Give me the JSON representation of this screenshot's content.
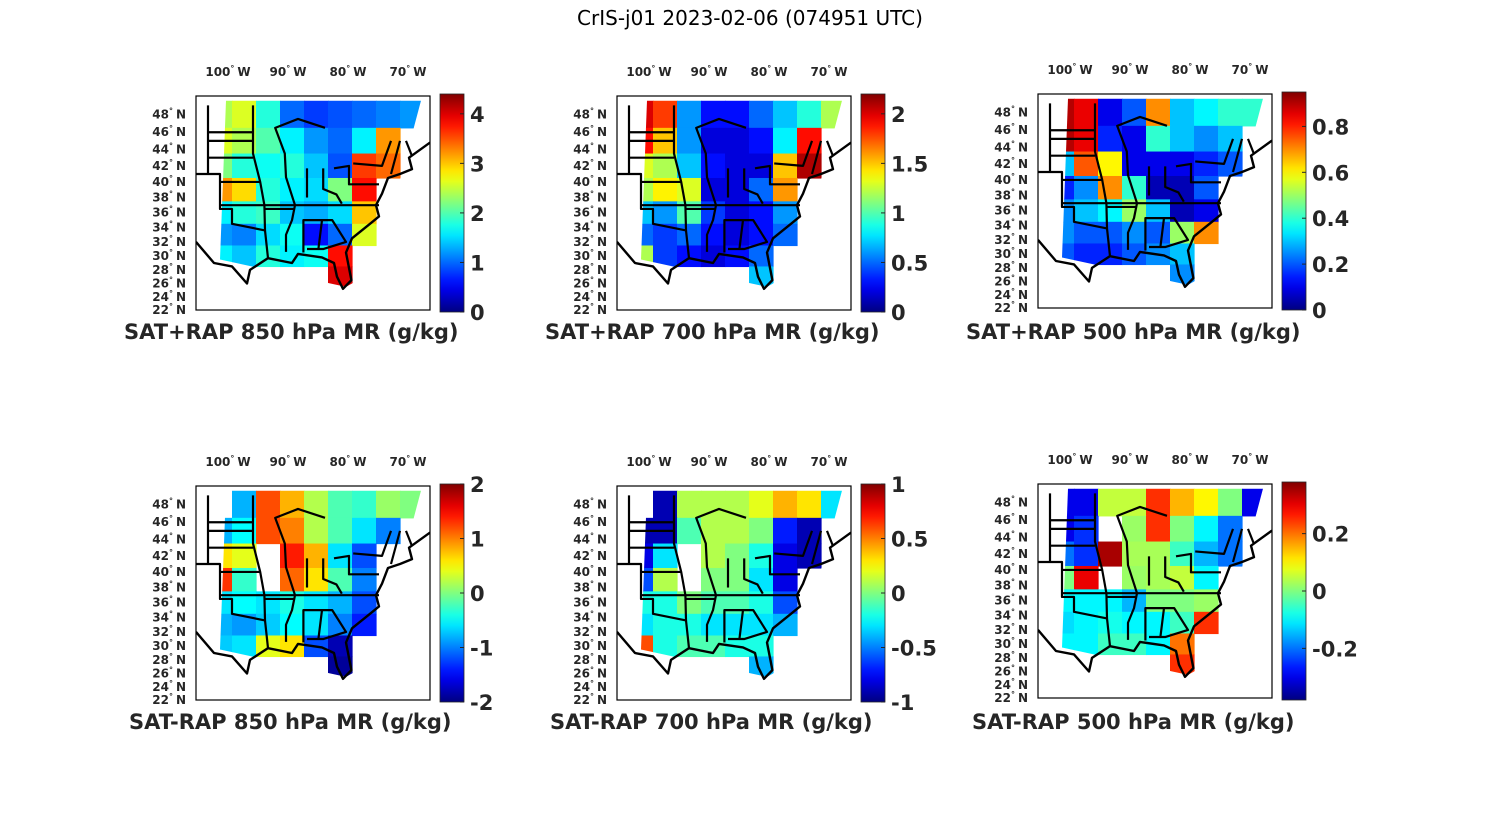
{
  "figure_title": "CrIS-j01 2023-02-06 (074951 UTC)",
  "colormap": "jet",
  "colors": {
    "background": "#ffffff",
    "text": "#262626",
    "border": "#000000",
    "missing": "#ffffff"
  },
  "chart_data": [
    {
      "type": "heatmap",
      "title": "SAT+RAP 850 hPa MR (g/kg)",
      "x_ticks": [
        "100° W",
        "90° W",
        "80° W",
        "70° W"
      ],
      "y_ticks": [
        "48° N",
        "46° N",
        "44° N",
        "42° N",
        "40° N",
        "38° N",
        "36° N",
        "34° N",
        "32° N",
        "30° N",
        "28° N",
        "26° N",
        "24° N",
        "22° N"
      ],
      "xlim": [
        -106,
        -67
      ],
      "ylim": [
        22,
        50
      ],
      "clim": [
        0,
        4.4
      ],
      "colorbar_ticks": [
        "0",
        "1",
        "2",
        "3",
        "4"
      ],
      "colorbar_values": [
        0,
        1,
        2,
        3,
        4
      ],
      "grid_lat": [
        48,
        45,
        42,
        39,
        36,
        33,
        30,
        27
      ],
      "grid_lon": [
        -102,
        -98,
        -94,
        -90,
        -86,
        -82,
        -78,
        -74,
        -70
      ],
      "values": [
        [
          2.4,
          2.6,
          1.8,
          1.0,
          0.8,
          0.9,
          1.0,
          1.1,
          1.2
        ],
        [
          2.6,
          2.4,
          2.0,
          1.6,
          1.2,
          1.0,
          1.6,
          3.2,
          null
        ],
        [
          2.2,
          1.8,
          1.7,
          1.8,
          1.4,
          0.9,
          3.6,
          3.4,
          null
        ],
        [
          3.2,
          2.9,
          1.8,
          1.6,
          1.5,
          2.2,
          3.8,
          null,
          null
        ],
        [
          1.6,
          1.8,
          1.9,
          1.4,
          1.3,
          1.5,
          3.0,
          null,
          null
        ],
        [
          1.2,
          1.1,
          1.5,
          1.7,
          0.6,
          1.0,
          2.6,
          null,
          null
        ],
        [
          1.6,
          1.4,
          1.8,
          1.6,
          1.7,
          3.8,
          null,
          null,
          null
        ],
        [
          null,
          null,
          null,
          null,
          null,
          4.0,
          null,
          null,
          null
        ]
      ]
    },
    {
      "type": "heatmap",
      "title": "SAT+RAP 700 hPa MR (g/kg)",
      "x_ticks": [
        "100° W",
        "90° W",
        "80° W",
        "70° W"
      ],
      "y_ticks": [
        "48° N",
        "46° N",
        "44° N",
        "42° N",
        "40° N",
        "38° N",
        "36° N",
        "34° N",
        "32° N",
        "30° N",
        "28° N",
        "26° N",
        "24° N",
        "22° N"
      ],
      "xlim": [
        -106,
        -67
      ],
      "ylim": [
        22,
        50
      ],
      "clim": [
        0,
        2.2
      ],
      "colorbar_ticks": [
        "0",
        "0.5",
        "1",
        "1.5",
        "2"
      ],
      "colorbar_values": [
        0,
        0.5,
        1,
        1.5,
        2
      ],
      "grid_lat": [
        48,
        45,
        42,
        39,
        36,
        33,
        30,
        27
      ],
      "grid_lon": [
        -102,
        -98,
        -94,
        -90,
        -86,
        -82,
        -78,
        -74,
        -70
      ],
      "values": [
        [
          2.0,
          1.8,
          0.6,
          0.3,
          0.3,
          0.5,
          0.7,
          0.9,
          1.2
        ],
        [
          1.9,
          1.5,
          0.6,
          0.2,
          0.2,
          0.3,
          0.8,
          1.9,
          null
        ],
        [
          1.3,
          1.2,
          0.7,
          0.3,
          0.2,
          0.2,
          1.5,
          2.1,
          null
        ],
        [
          1.2,
          1.4,
          1.3,
          0.2,
          0.2,
          0.5,
          1.6,
          null,
          null
        ],
        [
          0.7,
          0.6,
          1.0,
          0.4,
          0.2,
          0.3,
          0.6,
          null,
          null
        ],
        [
          0.5,
          0.4,
          0.5,
          0.3,
          0.2,
          0.3,
          0.5,
          null,
          null
        ],
        [
          1.2,
          0.4,
          0.3,
          0.2,
          0.3,
          0.5,
          null,
          null,
          null
        ],
        [
          null,
          null,
          null,
          null,
          null,
          0.7,
          null,
          null,
          null
        ]
      ]
    },
    {
      "type": "heatmap",
      "title": "SAT+RAP 500 hPa MR (g/kg)",
      "x_ticks": [
        "100° W",
        "90° W",
        "80° W",
        "70° W"
      ],
      "y_ticks": [
        "48° N",
        "46° N",
        "44° N",
        "42° N",
        "40° N",
        "38° N",
        "36° N",
        "34° N",
        "32° N",
        "30° N",
        "28° N",
        "26° N",
        "24° N",
        "22° N"
      ],
      "xlim": [
        -106,
        -67
      ],
      "ylim": [
        22,
        50
      ],
      "clim": [
        0,
        0.95
      ],
      "colorbar_ticks": [
        "0",
        "0.2",
        "0.4",
        "0.6",
        "0.8"
      ],
      "colorbar_values": [
        0,
        0.2,
        0.4,
        0.6,
        0.8
      ],
      "grid_lat": [
        48,
        45,
        42,
        39,
        36,
        33,
        30,
        27
      ],
      "grid_lon": [
        -102,
        -98,
        -94,
        -90,
        -86,
        -82,
        -78,
        -74,
        -70
      ],
      "values": [
        [
          0.9,
          0.85,
          0.1,
          0.2,
          0.7,
          0.3,
          0.35,
          0.4,
          0.4
        ],
        [
          0.9,
          0.85,
          0.15,
          0.1,
          0.4,
          0.3,
          0.25,
          0.3,
          null
        ],
        [
          0.3,
          0.75,
          0.6,
          0.1,
          0.1,
          0.1,
          0.15,
          0.2,
          null
        ],
        [
          0.15,
          0.25,
          0.7,
          0.4,
          0.05,
          0.05,
          0.2,
          null,
          null
        ],
        [
          0.25,
          0.3,
          0.35,
          0.5,
          0.3,
          0.05,
          0.1,
          null,
          null
        ],
        [
          0.25,
          0.2,
          0.2,
          0.25,
          0.2,
          0.5,
          0.7,
          null,
          null
        ],
        [
          0.2,
          0.15,
          0.15,
          0.2,
          0.25,
          0.3,
          null,
          null,
          null
        ],
        [
          null,
          null,
          null,
          null,
          null,
          0.25,
          null,
          null,
          null
        ]
      ]
    },
    {
      "type": "heatmap",
      "title": "SAT-RAP 850 hPa MR (g/kg)",
      "x_ticks": [
        "100° W",
        "90° W",
        "80° W",
        "70° W"
      ],
      "y_ticks": [
        "48° N",
        "46° N",
        "44° N",
        "42° N",
        "40° N",
        "38° N",
        "36° N",
        "34° N",
        "32° N",
        "30° N",
        "28° N",
        "26° N",
        "24° N",
        "22° N"
      ],
      "xlim": [
        -106,
        -67
      ],
      "ylim": [
        22,
        50
      ],
      "clim": [
        -2,
        2
      ],
      "colorbar_ticks": [
        "-2",
        "-1",
        "0",
        "1",
        "2"
      ],
      "colorbar_values": [
        -2,
        -1,
        0,
        1,
        2
      ],
      "grid_lat": [
        48,
        45,
        42,
        39,
        36,
        33,
        30,
        27
      ],
      "grid_lon": [
        -102,
        -98,
        -94,
        -90,
        -86,
        -82,
        -78,
        -74,
        -70
      ],
      "values": [
        [
          null,
          -0.8,
          1.2,
          0.8,
          0.2,
          -0.2,
          -0.3,
          0.1,
          0.0
        ],
        [
          -0.8,
          -0.5,
          1.2,
          1.0,
          0.2,
          -0.2,
          -0.6,
          -1.0,
          null
        ],
        [
          0.6,
          0.4,
          null,
          1.4,
          0.8,
          -0.6,
          -1.2,
          null,
          null
        ],
        [
          1.3,
          -0.3,
          null,
          1.1,
          0.6,
          -0.2,
          -1.0,
          null,
          null
        ],
        [
          -0.6,
          -0.5,
          -0.6,
          -0.4,
          -0.6,
          -0.8,
          -1.2,
          null,
          null
        ],
        [
          -0.8,
          -0.9,
          -0.7,
          -0.5,
          -0.6,
          -1.0,
          -1.4,
          null,
          null
        ],
        [
          -0.7,
          -0.6,
          0.4,
          0.6,
          -1.2,
          -1.8,
          null,
          null,
          null
        ],
        [
          null,
          null,
          null,
          null,
          null,
          -1.9,
          null,
          null,
          null
        ]
      ]
    },
    {
      "type": "heatmap",
      "title": "SAT-RAP 700 hPa MR (g/kg)",
      "x_ticks": [
        "100° W",
        "90° W",
        "80° W",
        "70° W"
      ],
      "y_ticks": [
        "48° N",
        "46° N",
        "44° N",
        "42° N",
        "40° N",
        "38° N",
        "36° N",
        "34° N",
        "32° N",
        "30° N",
        "28° N",
        "26° N",
        "24° N",
        "22° N"
      ],
      "xlim": [
        -106,
        -67
      ],
      "ylim": [
        22,
        50
      ],
      "clim": [
        -1,
        1
      ],
      "colorbar_ticks": [
        "-1",
        "-0.5",
        "0",
        "0.5",
        "1"
      ],
      "colorbar_values": [
        -1,
        -0.5,
        0,
        0.5,
        1
      ],
      "grid_lat": [
        48,
        45,
        42,
        39,
        36,
        33,
        30,
        27
      ],
      "grid_lon": [
        -102,
        -98,
        -94,
        -90,
        -86,
        -82,
        -78,
        -74,
        -70
      ],
      "values": [
        [
          null,
          -0.9,
          0.1,
          0.1,
          0.1,
          0.2,
          0.4,
          0.3,
          -0.3
        ],
        [
          -0.9,
          -0.9,
          -0.1,
          0.1,
          0.1,
          0.0,
          -0.7,
          -0.9,
          null
        ],
        [
          -0.8,
          -0.3,
          null,
          0.1,
          0.0,
          -0.2,
          -0.8,
          -0.9,
          null
        ],
        [
          -0.6,
          0.1,
          null,
          0.0,
          0.0,
          -0.3,
          -0.8,
          null,
          null
        ],
        [
          -0.2,
          -0.2,
          0.0,
          -0.1,
          -0.1,
          -0.2,
          -0.6,
          null,
          null
        ],
        [
          -0.3,
          -0.2,
          -0.2,
          -0.3,
          -0.3,
          -0.3,
          -0.4,
          null,
          null
        ],
        [
          0.6,
          -0.2,
          -0.1,
          -0.1,
          -0.2,
          -0.2,
          null,
          null,
          null
        ],
        [
          null,
          null,
          null,
          null,
          null,
          -0.4,
          null,
          null,
          null
        ]
      ]
    },
    {
      "type": "heatmap",
      "title": "SAT-RAP 500 hPa MR (g/kg)",
      "x_ticks": [
        "100° W",
        "90° W",
        "80° W",
        "70° W"
      ],
      "y_ticks": [
        "48° N",
        "46° N",
        "44° N",
        "42° N",
        "40° N",
        "38° N",
        "36° N",
        "34° N",
        "32° N",
        "30° N",
        "28° N",
        "26° N",
        "24° N",
        "22° N"
      ],
      "xlim": [
        -106,
        -67
      ],
      "ylim": [
        22,
        50
      ],
      "clim": [
        -0.38,
        0.38
      ],
      "colorbar_ticks": [
        "-0.2",
        "0",
        "0.2"
      ],
      "colorbar_values": [
        -0.2,
        0,
        0.2
      ],
      "grid_lat": [
        48,
        45,
        42,
        39,
        36,
        33,
        30,
        27
      ],
      "grid_lon": [
        -102,
        -98,
        -94,
        -90,
        -86,
        -82,
        -78,
        -74,
        -70
      ],
      "values": [
        [
          -0.3,
          -0.3,
          0.05,
          0.05,
          0.25,
          0.15,
          0.1,
          0.0,
          -0.3
        ],
        [
          -0.3,
          -0.25,
          null,
          0.02,
          0.25,
          0.0,
          -0.1,
          -0.2,
          null
        ],
        [
          -0.2,
          -0.25,
          0.35,
          0.03,
          0.03,
          -0.05,
          -0.15,
          -0.2,
          null
        ],
        [
          0.0,
          0.3,
          null,
          0.02,
          0.03,
          0.05,
          -0.1,
          null,
          null
        ],
        [
          -0.1,
          -0.1,
          -0.1,
          -0.15,
          0.0,
          0.0,
          0.02,
          null,
          null
        ],
        [
          -0.12,
          -0.1,
          -0.08,
          -0.1,
          -0.1,
          -0.05,
          0.25,
          null,
          null
        ],
        [
          -0.1,
          -0.1,
          -0.05,
          -0.05,
          -0.1,
          0.2,
          null,
          null,
          null
        ],
        [
          null,
          null,
          null,
          null,
          null,
          0.25,
          null,
          null,
          null
        ]
      ]
    }
  ]
}
